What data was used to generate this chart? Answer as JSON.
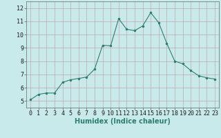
{
  "x": [
    0,
    1,
    2,
    3,
    4,
    5,
    6,
    7,
    8,
    9,
    10,
    11,
    12,
    13,
    14,
    15,
    16,
    17,
    18,
    19,
    20,
    21,
    22,
    23
  ],
  "y": [
    5.1,
    5.5,
    5.6,
    5.6,
    6.4,
    6.6,
    6.7,
    6.8,
    7.4,
    9.2,
    9.15,
    11.2,
    10.4,
    10.3,
    10.65,
    11.65,
    10.9,
    9.35,
    8.0,
    7.8,
    7.3,
    6.9,
    6.75,
    6.65
  ],
  "line_color": "#2e7d6e",
  "marker": ".",
  "marker_size": 3,
  "bg_color": "#c8eaea",
  "grid_color": "#c0a8b0",
  "xlabel": "Humidex (Indice chaleur)",
  "xlabel_fontsize": 7,
  "tick_fontsize": 6,
  "ylim": [
    4.5,
    12.5
  ],
  "xlim": [
    -0.5,
    23.5
  ],
  "yticks": [
    5,
    6,
    7,
    8,
    9,
    10,
    11,
    12
  ],
  "xticks": [
    0,
    1,
    2,
    3,
    4,
    5,
    6,
    7,
    8,
    9,
    10,
    11,
    12,
    13,
    14,
    15,
    16,
    17,
    18,
    19,
    20,
    21,
    22,
    23
  ]
}
